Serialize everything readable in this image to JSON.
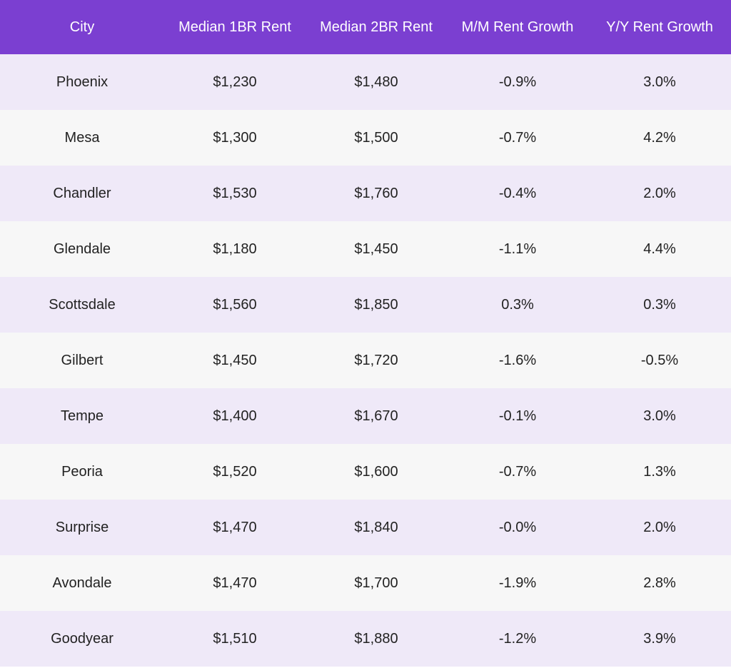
{
  "table": {
    "columns": [
      "City",
      "Median 1BR Rent",
      "Median 2BR Rent",
      "M/M Rent Growth",
      "Y/Y Rent Growth"
    ],
    "rows": [
      [
        "Phoenix",
        "$1,230",
        "$1,480",
        "-0.9%",
        "3.0%"
      ],
      [
        "Mesa",
        "$1,300",
        "$1,500",
        "-0.7%",
        "4.2%"
      ],
      [
        "Chandler",
        "$1,530",
        "$1,760",
        "-0.4%",
        "2.0%"
      ],
      [
        "Glendale",
        "$1,180",
        "$1,450",
        "-1.1%",
        "4.4%"
      ],
      [
        "Scottsdale",
        "$1,560",
        "$1,850",
        "0.3%",
        "0.3%"
      ],
      [
        "Gilbert",
        "$1,450",
        "$1,720",
        "-1.6%",
        "-0.5%"
      ],
      [
        "Tempe",
        "$1,400",
        "$1,670",
        "-0.1%",
        "3.0%"
      ],
      [
        "Peoria",
        "$1,520",
        "$1,600",
        "-0.7%",
        "1.3%"
      ],
      [
        "Surprise",
        "$1,470",
        "$1,840",
        "-0.0%",
        "2.0%"
      ],
      [
        "Avondale",
        "$1,470",
        "$1,700",
        "-1.9%",
        "2.8%"
      ],
      [
        "Goodyear",
        "$1,510",
        "$1,880",
        "-1.2%",
        "3.9%"
      ]
    ]
  }
}
